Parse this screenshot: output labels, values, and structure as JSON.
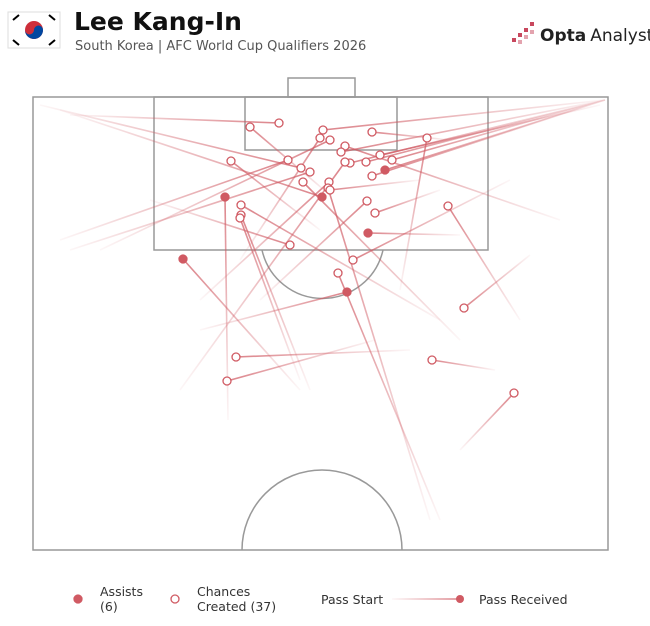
{
  "header": {
    "title": "Lee Kang-In",
    "subtitle": "South Korea | AFC World Cup Qualifiers 2026",
    "brand_bold": "Opta",
    "brand": "Analyst"
  },
  "chart_data": {
    "type": "pass-map",
    "legend_start": "Pass Start",
    "legend_end": "Pass Received",
    "series": [
      {
        "name": "Assists",
        "legend_label": [
          "Assists",
          "(6)"
        ],
        "color": "#d05a63",
        "filled": true,
        "passes": [
          {
            "start": [
              195,
              323
            ],
            "end": [
              192,
              100
            ]
          },
          {
            "start": [
              27,
              13
            ],
            "end": [
              289,
              100
            ]
          },
          {
            "start": [
              572,
              3
            ],
            "end": [
              352,
              73
            ]
          },
          {
            "start": [
              427,
              138
            ],
            "end": [
              335,
              136
            ]
          },
          {
            "start": [
              267,
              293
            ],
            "end": [
              150,
              162
            ]
          },
          {
            "start": [
              167,
              233
            ],
            "end": [
              314,
              195
            ]
          }
        ]
      },
      {
        "name": "Chances Created",
        "legend_label": [
          "Chances",
          "Created (37)"
        ],
        "color": "#d05a63",
        "filled": false,
        "passes": [
          {
            "start": [
              37,
              18
            ],
            "end": [
              246,
              26
            ]
          },
          {
            "start": [
              297,
              98
            ],
            "end": [
              217,
              30
            ]
          },
          {
            "start": [
              572,
              3
            ],
            "end": [
              290,
              33
            ]
          },
          {
            "start": [
              417,
              43
            ],
            "end": [
              339,
              35
            ]
          },
          {
            "start": [
              207,
              163
            ],
            "end": [
              287,
              41
            ]
          },
          {
            "start": [
              367,
              193
            ],
            "end": [
              394,
              41
            ]
          },
          {
            "start": [
              527,
              123
            ],
            "end": [
              312,
              49
            ]
          },
          {
            "start": [
              572,
              3
            ],
            "end": [
              308,
              55
            ]
          },
          {
            "start": [
              572,
              3
            ],
            "end": [
              359,
              63
            ]
          },
          {
            "start": [
              572,
              3
            ],
            "end": [
              333,
              65
            ]
          },
          {
            "start": [
              572,
              3
            ],
            "end": [
              317,
              66
            ]
          },
          {
            "start": [
              287,
              133
            ],
            "end": [
              198,
              64
            ]
          },
          {
            "start": [
              7,
              8
            ],
            "end": [
              268,
              71
            ]
          },
          {
            "start": [
              37,
              153
            ],
            "end": [
              277,
              75
            ]
          },
          {
            "start": [
              572,
              3
            ],
            "end": [
              339,
              79
            ]
          },
          {
            "start": [
              167,
              203
            ],
            "end": [
              296,
              85
            ]
          },
          {
            "start": [
              397,
              423
            ],
            "end": [
              295,
              91
            ]
          },
          {
            "start": [
              427,
              243
            ],
            "end": [
              270,
              85
            ]
          },
          {
            "start": [
              407,
              223
            ],
            "end": [
              208,
              108
            ]
          },
          {
            "start": [
              227,
              203
            ],
            "end": [
              334,
              104
            ]
          },
          {
            "start": [
              487,
              223
            ],
            "end": [
              415,
              109
            ]
          },
          {
            "start": [
              277,
              293
            ],
            "end": [
              208,
              118
            ]
          },
          {
            "start": [
              407,
              93
            ],
            "end": [
              342,
              116
            ]
          },
          {
            "start": [
              117,
              103
            ],
            "end": [
              257,
              148
            ]
          },
          {
            "start": [
              477,
              83
            ],
            "end": [
              320,
              163
            ]
          },
          {
            "start": [
              407,
              423
            ],
            "end": [
              305,
              176
            ]
          },
          {
            "start": [
              497,
              158
            ],
            "end": [
              431,
              211
            ]
          },
          {
            "start": [
              377,
              253
            ],
            "end": [
              203,
              260
            ]
          },
          {
            "start": [
              462,
              273
            ],
            "end": [
              399,
              263
            ]
          },
          {
            "start": [
              342,
              243
            ],
            "end": [
              194,
              284
            ]
          },
          {
            "start": [
              427,
              353
            ],
            "end": [
              481,
              296
            ]
          },
          {
            "start": [
              67,
              153
            ],
            "end": [
              297,
              43
            ]
          },
          {
            "start": [
              147,
              293
            ],
            "end": [
              312,
              65
            ]
          },
          {
            "start": [
              567,
              8
            ],
            "end": [
              347,
              58
            ]
          },
          {
            "start": [
              27,
              143
            ],
            "end": [
              255,
              63
            ]
          },
          {
            "start": [
              387,
              83
            ],
            "end": [
              297,
              93
            ]
          },
          {
            "start": [
              267,
              283
            ],
            "end": [
              207,
              121
            ]
          }
        ]
      }
    ]
  }
}
